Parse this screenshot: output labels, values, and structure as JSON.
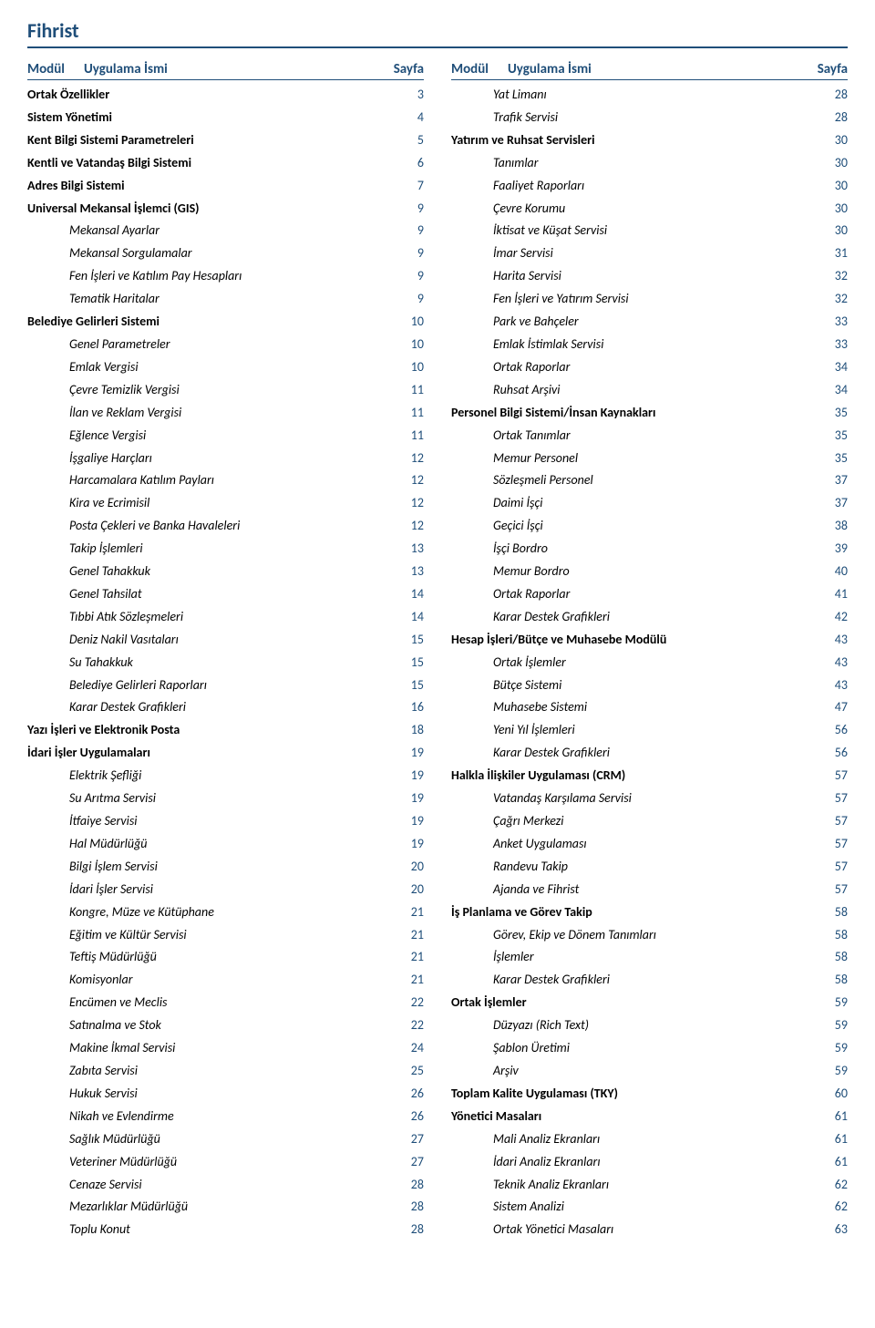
{
  "title": "Fihrist",
  "colors": {
    "accent": "#1f4e79",
    "text": "#000000",
    "background": "#ffffff"
  },
  "headers": {
    "module": "Modül",
    "name": "Uygulama İsmi",
    "page": "Sayfa"
  },
  "left": [
    {
      "label": "Ortak Özellikler",
      "page": "3",
      "level": 0
    },
    {
      "label": "Sistem Yönetimi",
      "page": "4",
      "level": 0
    },
    {
      "label": "Kent Bilgi Sistemi Parametreleri",
      "page": "5",
      "level": 0
    },
    {
      "label": "Kentli ve Vatandaş Bilgi Sistemi",
      "page": "6",
      "level": 0
    },
    {
      "label": "Adres Bilgi Sistemi",
      "page": "7",
      "level": 0
    },
    {
      "label": "Universal Mekansal İşlemci (GIS)",
      "page": "9",
      "level": 0
    },
    {
      "label": "Mekansal Ayarlar",
      "page": "9",
      "level": 1
    },
    {
      "label": "Mekansal Sorgulamalar",
      "page": "9",
      "level": 1
    },
    {
      "label": "Fen İşleri ve Katılım Pay Hesapları",
      "page": "9",
      "level": 1
    },
    {
      "label": "Tematik Haritalar",
      "page": "9",
      "level": 1
    },
    {
      "label": "Belediye Gelirleri Sistemi",
      "page": "10",
      "level": 0
    },
    {
      "label": "Genel Parametreler",
      "page": "10",
      "level": 1
    },
    {
      "label": "Emlak Vergisi",
      "page": "10",
      "level": 1
    },
    {
      "label": "Çevre Temizlik Vergisi",
      "page": "11",
      "level": 1
    },
    {
      "label": "İlan ve Reklam Vergisi",
      "page": "11",
      "level": 1
    },
    {
      "label": "Eğlence Vergisi",
      "page": "11",
      "level": 1
    },
    {
      "label": "İşgaliye Harçları",
      "page": "12",
      "level": 1
    },
    {
      "label": "Harcamalara Katılım Payları",
      "page": "12",
      "level": 1
    },
    {
      "label": "Kira ve Ecrimisil",
      "page": "12",
      "level": 1
    },
    {
      "label": "Posta Çekleri ve Banka Havaleleri",
      "page": "12",
      "level": 1
    },
    {
      "label": "Takip İşlemleri",
      "page": "13",
      "level": 1
    },
    {
      "label": "Genel Tahakkuk",
      "page": "13",
      "level": 1
    },
    {
      "label": "Genel Tahsilat",
      "page": "14",
      "level": 1
    },
    {
      "label": "Tıbbi Atık Sözleşmeleri",
      "page": "14",
      "level": 1
    },
    {
      "label": "Deniz Nakil Vasıtaları",
      "page": "15",
      "level": 1
    },
    {
      "label": "Su Tahakkuk",
      "page": "15",
      "level": 1
    },
    {
      "label": "Belediye Gelirleri Raporları",
      "page": "15",
      "level": 1
    },
    {
      "label": "Karar Destek Grafikleri",
      "page": "16",
      "level": 1
    },
    {
      "label": "Yazı İşleri ve Elektronik Posta",
      "page": "18",
      "level": 0
    },
    {
      "label": "İdari İşler Uygulamaları",
      "page": "19",
      "level": 0
    },
    {
      "label": "Elektrik Şefliği",
      "page": "19",
      "level": 1
    },
    {
      "label": "Su Arıtma Servisi",
      "page": "19",
      "level": 1
    },
    {
      "label": "İtfaiye Servisi",
      "page": "19",
      "level": 1
    },
    {
      "label": "Hal Müdürlüğü",
      "page": "19",
      "level": 1
    },
    {
      "label": "Bilgi İşlem Servisi",
      "page": "20",
      "level": 1
    },
    {
      "label": "İdari İşler Servisi",
      "page": "20",
      "level": 1
    },
    {
      "label": "Kongre, Müze ve Kütüphane",
      "page": "21",
      "level": 1
    },
    {
      "label": "Eğitim ve Kültür Servisi",
      "page": "21",
      "level": 1
    },
    {
      "label": "Teftiş Müdürlüğü",
      "page": "21",
      "level": 1
    },
    {
      "label": "Komisyonlar",
      "page": "21",
      "level": 1
    },
    {
      "label": "Encümen ve Meclis",
      "page": "22",
      "level": 1
    },
    {
      "label": "Satınalma ve Stok",
      "page": "22",
      "level": 1
    },
    {
      "label": "Makine İkmal Servisi",
      "page": "24",
      "level": 1
    },
    {
      "label": "Zabıta Servisi",
      "page": "25",
      "level": 1
    },
    {
      "label": "Hukuk Servisi",
      "page": "26",
      "level": 1
    },
    {
      "label": "Nikah ve Evlendirme",
      "page": "26",
      "level": 1
    },
    {
      "label": "Sağlık Müdürlüğü",
      "page": "27",
      "level": 1
    },
    {
      "label": "Veteriner Müdürlüğü",
      "page": "27",
      "level": 1
    },
    {
      "label": "Cenaze Servisi",
      "page": "28",
      "level": 1
    },
    {
      "label": "Mezarlıklar Müdürlüğü",
      "page": "28",
      "level": 1
    },
    {
      "label": "Toplu Konut",
      "page": "28",
      "level": 1
    }
  ],
  "right": [
    {
      "label": "Yat Limanı",
      "page": "28",
      "level": 1
    },
    {
      "label": "Trafik Servisi",
      "page": "28",
      "level": 1
    },
    {
      "label": "Yatırım ve Ruhsat Servisleri",
      "page": "30",
      "level": 0
    },
    {
      "label": "Tanımlar",
      "page": "30",
      "level": 1
    },
    {
      "label": "Faaliyet Raporları",
      "page": "30",
      "level": 1
    },
    {
      "label": "Çevre Korumu",
      "page": "30",
      "level": 1
    },
    {
      "label": "İktisat ve Küşat Servisi",
      "page": "30",
      "level": 1
    },
    {
      "label": "İmar Servisi",
      "page": "31",
      "level": 1
    },
    {
      "label": "Harita Servisi",
      "page": "32",
      "level": 1
    },
    {
      "label": "Fen İşleri ve Yatırım Servisi",
      "page": "32",
      "level": 1
    },
    {
      "label": "Park ve Bahçeler",
      "page": "33",
      "level": 1
    },
    {
      "label": "Emlak İstimlak Servisi",
      "page": "33",
      "level": 1
    },
    {
      "label": "Ortak Raporlar",
      "page": "34",
      "level": 1
    },
    {
      "label": "Ruhsat Arşivi",
      "page": "34",
      "level": 1
    },
    {
      "label": "Personel Bilgi Sistemi/İnsan Kaynakları",
      "page": "35",
      "level": 0
    },
    {
      "label": "Ortak Tanımlar",
      "page": "35",
      "level": 1
    },
    {
      "label": "Memur Personel",
      "page": "35",
      "level": 1
    },
    {
      "label": "Sözleşmeli Personel",
      "page": "37",
      "level": 1
    },
    {
      "label": "Daimi İşçi",
      "page": "37",
      "level": 1
    },
    {
      "label": "Geçici İşçi",
      "page": "38",
      "level": 1
    },
    {
      "label": "İşçi Bordro",
      "page": "39",
      "level": 1
    },
    {
      "label": "Memur Bordro",
      "page": "40",
      "level": 1
    },
    {
      "label": "Ortak Raporlar",
      "page": "41",
      "level": 1
    },
    {
      "label": "Karar Destek Grafikleri",
      "page": "42",
      "level": 1
    },
    {
      "label": "Hesap İşleri/Bütçe ve Muhasebe Modülü",
      "page": "43",
      "level": 0
    },
    {
      "label": "Ortak İşlemler",
      "page": "43",
      "level": 1
    },
    {
      "label": "Bütçe Sistemi",
      "page": "43",
      "level": 1
    },
    {
      "label": "Muhasebe Sistemi",
      "page": "47",
      "level": 1
    },
    {
      "label": "Yeni Yıl İşlemleri",
      "page": "56",
      "level": 1
    },
    {
      "label": "Karar Destek Grafikleri",
      "page": "56",
      "level": 1
    },
    {
      "label": "Halkla İlişkiler Uygulaması (CRM)",
      "page": "57",
      "level": 0
    },
    {
      "label": "Vatandaş Karşılama Servisi",
      "page": "57",
      "level": 1
    },
    {
      "label": "Çağrı Merkezi",
      "page": "57",
      "level": 1
    },
    {
      "label": "Anket Uygulaması",
      "page": "57",
      "level": 1
    },
    {
      "label": "Randevu Takip",
      "page": "57",
      "level": 1
    },
    {
      "label": "Ajanda ve Fihrist",
      "page": "57",
      "level": 1
    },
    {
      "label": "İş Planlama ve Görev Takip",
      "page": "58",
      "level": 0
    },
    {
      "label": "Görev, Ekip ve Dönem Tanımları",
      "page": "58",
      "level": 1
    },
    {
      "label": "İşlemler",
      "page": "58",
      "level": 1
    },
    {
      "label": "Karar Destek Grafikleri",
      "page": "58",
      "level": 1
    },
    {
      "label": "Ortak İşlemler",
      "page": "59",
      "level": 0
    },
    {
      "label": "Düzyazı (Rich Text)",
      "page": "59",
      "level": 1
    },
    {
      "label": "Şablon Üretimi",
      "page": "59",
      "level": 1
    },
    {
      "label": "Arşiv",
      "page": "59",
      "level": 1
    },
    {
      "label": "Toplam Kalite Uygulaması (TKY)",
      "page": "60",
      "level": 0
    },
    {
      "label": "Yönetici Masaları",
      "page": "61",
      "level": 0
    },
    {
      "label": "Mali Analiz Ekranları",
      "page": "61",
      "level": 1
    },
    {
      "label": "İdari Analiz Ekranları",
      "page": "61",
      "level": 1
    },
    {
      "label": "Teknik Analiz Ekranları",
      "page": "62",
      "level": 1
    },
    {
      "label": "Sistem Analizi",
      "page": "62",
      "level": 1
    },
    {
      "label": "Ortak Yönetici Masaları",
      "page": "63",
      "level": 1
    }
  ]
}
